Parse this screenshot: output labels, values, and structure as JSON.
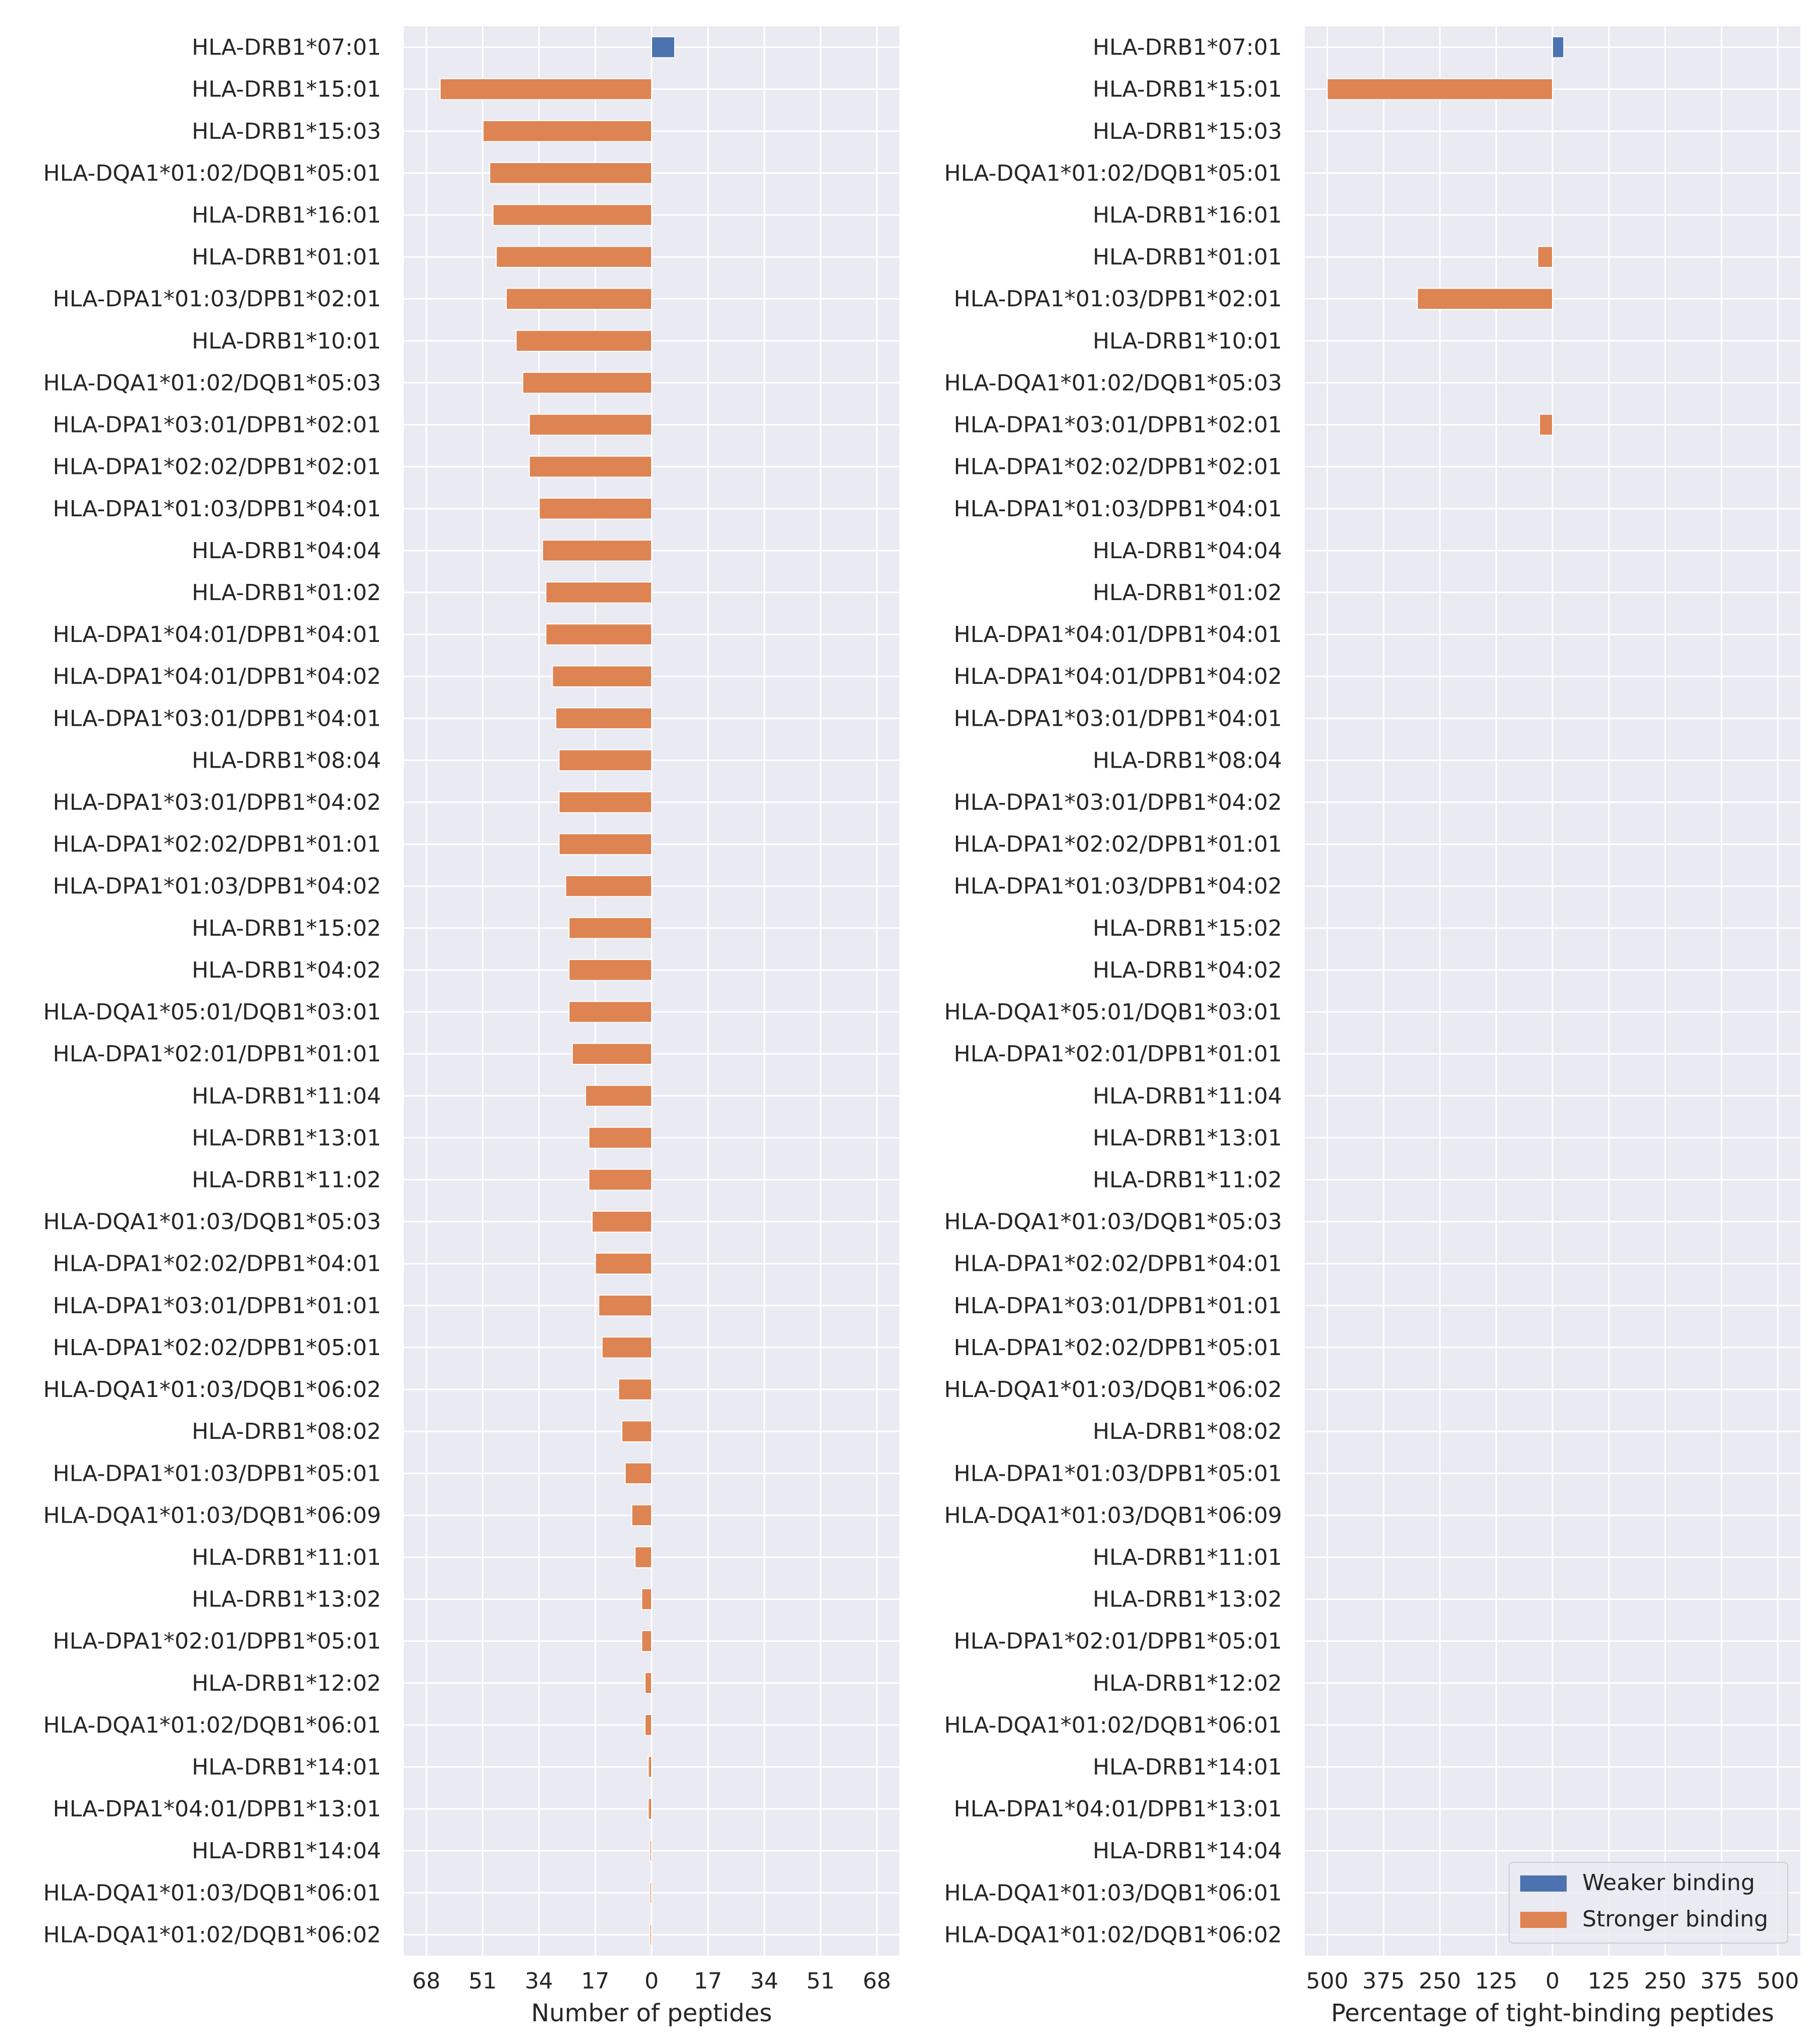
{
  "colors": {
    "weaker": "#4c72b0",
    "stronger": "#dd8452",
    "panel_bg": "#eaeaf2",
    "grid": "#ffffff"
  },
  "chart_data": [
    {
      "type": "bar",
      "orientation": "horizontal",
      "xlabel": "Number of peptides",
      "xticks": [
        "68",
        "51",
        "34",
        "17",
        "0",
        "17",
        "34",
        "51",
        "68"
      ],
      "xlim": [
        -75,
        75
      ],
      "grid": true,
      "categories": [
        "HLA-DRB1*07:01",
        "HLA-DRB1*15:01",
        "HLA-DRB1*15:03",
        "HLA-DQA1*01:02/DQB1*05:01",
        "HLA-DRB1*16:01",
        "HLA-DRB1*01:01",
        "HLA-DPA1*01:03/DPB1*02:01",
        "HLA-DRB1*10:01",
        "HLA-DQA1*01:02/DQB1*05:03",
        "HLA-DPA1*03:01/DPB1*02:01",
        "HLA-DPA1*02:02/DPB1*02:01",
        "HLA-DPA1*01:03/DPB1*04:01",
        "HLA-DRB1*04:04",
        "HLA-DRB1*01:02",
        "HLA-DPA1*04:01/DPB1*04:01",
        "HLA-DPA1*04:01/DPB1*04:02",
        "HLA-DPA1*03:01/DPB1*04:01",
        "HLA-DRB1*08:04",
        "HLA-DPA1*03:01/DPB1*04:02",
        "HLA-DPA1*02:02/DPB1*01:01",
        "HLA-DPA1*01:03/DPB1*04:02",
        "HLA-DRB1*15:02",
        "HLA-DRB1*04:02",
        "HLA-DQA1*05:01/DQB1*03:01",
        "HLA-DPA1*02:01/DPB1*01:01",
        "HLA-DRB1*11:04",
        "HLA-DRB1*13:01",
        "HLA-DRB1*11:02",
        "HLA-DQA1*01:03/DQB1*05:03",
        "HLA-DPA1*02:02/DPB1*04:01",
        "HLA-DPA1*03:01/DPB1*01:01",
        "HLA-DPA1*02:02/DPB1*05:01",
        "HLA-DQA1*01:03/DQB1*06:02",
        "HLA-DRB1*08:02",
        "HLA-DPA1*01:03/DPB1*05:01",
        "HLA-DQA1*01:03/DQB1*06:09",
        "HLA-DRB1*11:01",
        "HLA-DRB1*13:02",
        "HLA-DPA1*02:01/DPB1*05:01",
        "HLA-DRB1*12:02",
        "HLA-DQA1*01:02/DQB1*06:01",
        "HLA-DRB1*14:01",
        "HLA-DPA1*04:01/DPB1*13:01",
        "HLA-DRB1*14:04",
        "HLA-DQA1*01:03/DQB1*06:01",
        "HLA-DQA1*01:02/DQB1*06:02"
      ],
      "series": [
        {
          "name": "Weaker binding",
          "values": [
            7,
            0,
            0,
            0,
            0,
            0,
            0,
            0,
            0,
            0,
            0,
            0,
            0,
            0,
            0,
            0,
            0,
            0,
            0,
            0,
            0,
            0,
            0,
            0,
            0,
            0,
            0,
            0,
            0,
            0,
            0,
            0,
            0,
            0,
            0,
            0,
            0,
            0,
            0,
            0,
            0,
            0,
            0,
            0,
            0,
            0
          ]
        },
        {
          "name": "Stronger binding",
          "values": [
            0,
            64,
            51,
            49,
            48,
            47,
            44,
            41,
            39,
            37,
            37,
            34,
            33,
            32,
            32,
            30,
            29,
            28,
            28,
            28,
            26,
            25,
            25,
            25,
            24,
            20,
            19,
            19,
            18,
            17,
            16,
            15,
            10,
            9,
            8,
            6,
            5,
            3,
            3,
            2,
            2,
            1,
            1,
            0.5,
            0.5,
            0.5
          ]
        }
      ]
    },
    {
      "type": "bar",
      "orientation": "horizontal",
      "xlabel": "Percentage of tight-binding peptides",
      "xticks": [
        "500",
        "375",
        "250",
        "125",
        "0",
        "125",
        "250",
        "375",
        "500"
      ],
      "xlim": [
        -550,
        550
      ],
      "grid": true,
      "legend": {
        "position": "lower-right",
        "entries": [
          "Weaker binding",
          "Stronger binding"
        ]
      },
      "categories": [
        "HLA-DRB1*07:01",
        "HLA-DRB1*15:01",
        "HLA-DRB1*15:03",
        "HLA-DQA1*01:02/DQB1*05:01",
        "HLA-DRB1*16:01",
        "HLA-DRB1*01:01",
        "HLA-DPA1*01:03/DPB1*02:01",
        "HLA-DRB1*10:01",
        "HLA-DQA1*01:02/DQB1*05:03",
        "HLA-DPA1*03:01/DPB1*02:01",
        "HLA-DPA1*02:02/DPB1*02:01",
        "HLA-DPA1*01:03/DPB1*04:01",
        "HLA-DRB1*04:04",
        "HLA-DRB1*01:02",
        "HLA-DPA1*04:01/DPB1*04:01",
        "HLA-DPA1*04:01/DPB1*04:02",
        "HLA-DPA1*03:01/DPB1*04:01",
        "HLA-DRB1*08:04",
        "HLA-DPA1*03:01/DPB1*04:02",
        "HLA-DPA1*02:02/DPB1*01:01",
        "HLA-DPA1*01:03/DPB1*04:02",
        "HLA-DRB1*15:02",
        "HLA-DRB1*04:02",
        "HLA-DQA1*05:01/DQB1*03:01",
        "HLA-DPA1*02:01/DPB1*01:01",
        "HLA-DRB1*11:04",
        "HLA-DRB1*13:01",
        "HLA-DRB1*11:02",
        "HLA-DQA1*01:03/DQB1*05:03",
        "HLA-DPA1*02:02/DPB1*04:01",
        "HLA-DPA1*03:01/DPB1*01:01",
        "HLA-DPA1*02:02/DPB1*05:01",
        "HLA-DQA1*01:03/DQB1*06:02",
        "HLA-DRB1*08:02",
        "HLA-DPA1*01:03/DPB1*05:01",
        "HLA-DQA1*01:03/DQB1*06:09",
        "HLA-DRB1*11:01",
        "HLA-DRB1*13:02",
        "HLA-DPA1*02:01/DPB1*05:01",
        "HLA-DRB1*12:02",
        "HLA-DQA1*01:02/DQB1*06:01",
        "HLA-DRB1*14:01",
        "HLA-DPA1*04:01/DPB1*13:01",
        "HLA-DRB1*14:04",
        "HLA-DQA1*01:03/DQB1*06:01",
        "HLA-DQA1*01:02/DQB1*06:02"
      ],
      "series": [
        {
          "name": "Weaker binding",
          "values": [
            25,
            0,
            0,
            0,
            0,
            0,
            0,
            0,
            0,
            0,
            0,
            0,
            0,
            0,
            0,
            0,
            0,
            0,
            0,
            0,
            0,
            0,
            0,
            0,
            0,
            0,
            0,
            0,
            0,
            0,
            0,
            0,
            0,
            0,
            0,
            0,
            0,
            0,
            0,
            0,
            0,
            0,
            0,
            0,
            0,
            0
          ]
        },
        {
          "name": "Stronger binding",
          "values": [
            0,
            500,
            0,
            0,
            0,
            33,
            300,
            0,
            0,
            29,
            0,
            0,
            0,
            0,
            0,
            0,
            0,
            0,
            0,
            0,
            0,
            0,
            0,
            0,
            0,
            0,
            0,
            0,
            0,
            0,
            0,
            0,
            0,
            0,
            0,
            0,
            0,
            0,
            0,
            0,
            0,
            0,
            0,
            0,
            0,
            0
          ]
        }
      ]
    }
  ]
}
